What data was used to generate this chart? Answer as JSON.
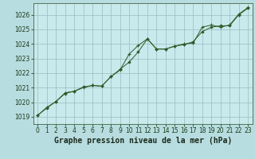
{
  "title": "Graphe pression niveau de la mer (hPa)",
  "background_color": "#b8dde0",
  "plot_bg_color": "#c8eaec",
  "grid_color": "#9bbcbe",
  "line_color": "#2d5a27",
  "spine_color": "#446644",
  "xlim": [
    -0.5,
    23.5
  ],
  "ylim": [
    1018.5,
    1026.8
  ],
  "xticks": [
    0,
    1,
    2,
    3,
    4,
    5,
    6,
    7,
    8,
    9,
    10,
    11,
    12,
    13,
    14,
    15,
    16,
    17,
    18,
    19,
    20,
    21,
    22,
    23
  ],
  "yticks": [
    1019,
    1020,
    1021,
    1022,
    1023,
    1024,
    1025,
    1026
  ],
  "series1_x": [
    0,
    1,
    2,
    3,
    4,
    5,
    6,
    7,
    8,
    9,
    10,
    11,
    12,
    13,
    14,
    15,
    16,
    17,
    18,
    19,
    20,
    21,
    22,
    23
  ],
  "series1_y": [
    1019.1,
    1019.6,
    1020.05,
    1020.6,
    1020.75,
    1021.05,
    1021.15,
    1021.1,
    1021.75,
    1022.25,
    1022.75,
    1023.45,
    1024.35,
    1023.65,
    1023.65,
    1023.85,
    1023.95,
    1024.15,
    1024.85,
    1025.15,
    1025.25,
    1025.25,
    1026.0,
    1026.45
  ],
  "series2_x": [
    0,
    1,
    2,
    3,
    4,
    5,
    6,
    7,
    8,
    9,
    10,
    11,
    12,
    13,
    14,
    15,
    16,
    17,
    18,
    19,
    20,
    21,
    22,
    23
  ],
  "series2_y": [
    1019.1,
    1019.65,
    1020.05,
    1020.65,
    1020.75,
    1021.0,
    1021.15,
    1021.1,
    1021.75,
    1022.2,
    1023.3,
    1023.9,
    1024.35,
    1023.65,
    1023.65,
    1023.85,
    1024.0,
    1024.05,
    1025.15,
    1025.3,
    1025.15,
    1025.3,
    1026.05,
    1026.5
  ],
  "title_fontsize": 7,
  "tick_fontsize": 5.5,
  "figsize": [
    3.2,
    2.0
  ],
  "dpi": 100
}
